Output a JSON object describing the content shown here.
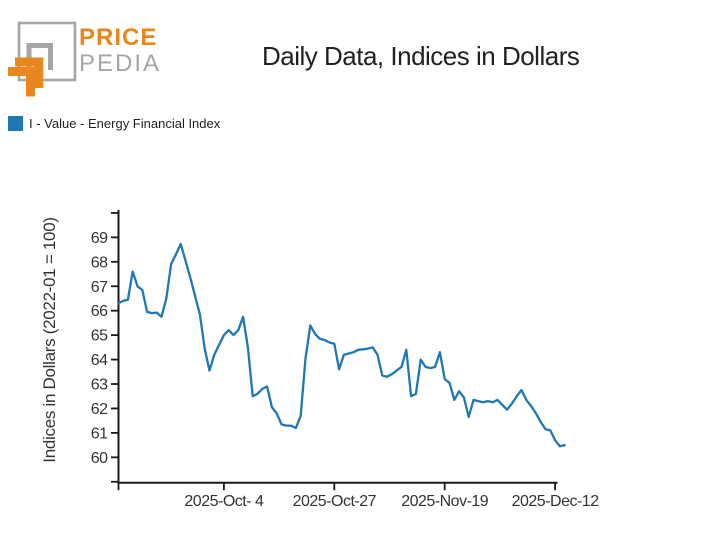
{
  "brand": {
    "name_top": "PRICE",
    "name_bottom": "PEDIA"
  },
  "title": "Daily Data, Indices in Dollars",
  "legend": {
    "label": "I - Value - Energy Financial Index",
    "swatch_color": "#1f77b4"
  },
  "colors": {
    "line": "#1f77b4",
    "logo_orange": "#e8871f",
    "logo_gray": "#a6a6a6",
    "axis": "#1a1a1a",
    "tick_text": "#333333"
  },
  "chart_data": {
    "type": "line",
    "title": "Daily Data, Indices in Dollars",
    "ylabel": "Indices in Dollars (2022-01 = 100)",
    "xlabel": "",
    "grid": false,
    "legend_position": "top-left-above-plot",
    "ylim": [
      58.9,
      70.1
    ],
    "yticks_labeled": [
      "69",
      "68",
      "67",
      "66",
      "65",
      "64",
      "63",
      "62",
      "61",
      "60"
    ],
    "yticks_unlabeled": [
      70,
      59
    ],
    "xticks": [
      {
        "label": "2025-Oct- 4",
        "index": 22
      },
      {
        "label": "2025-Oct-27",
        "index": 45
      },
      {
        "label": "2025-Nov-19",
        "index": 68
      },
      {
        "label": "2025-Dec-12",
        "index": 91
      }
    ],
    "series": [
      {
        "name": "I - Value - Energy Financial Index",
        "color": "#1f77b4",
        "frequency": "daily",
        "dates": [
          "2025-09-12",
          "2025-09-13",
          "2025-09-14",
          "2025-09-15",
          "2025-09-16",
          "2025-09-17",
          "2025-09-18",
          "2025-09-19",
          "2025-09-20",
          "2025-09-21",
          "2025-09-22",
          "2025-09-23",
          "2025-09-24",
          "2025-09-25",
          "2025-09-26",
          "2025-09-27",
          "2025-09-28",
          "2025-09-29",
          "2025-09-30",
          "2025-10-01",
          "2025-10-02",
          "2025-10-03",
          "2025-10-04",
          "2025-10-05",
          "2025-10-06",
          "2025-10-07",
          "2025-10-08",
          "2025-10-09",
          "2025-10-10",
          "2025-10-11",
          "2025-10-12",
          "2025-10-13",
          "2025-10-14",
          "2025-10-15",
          "2025-10-16",
          "2025-10-17",
          "2025-10-18",
          "2025-10-19",
          "2025-10-20",
          "2025-10-21",
          "2025-10-22",
          "2025-10-23",
          "2025-10-24",
          "2025-10-25",
          "2025-10-26",
          "2025-10-27",
          "2025-10-28",
          "2025-10-29",
          "2025-10-30",
          "2025-10-31",
          "2025-11-01",
          "2025-11-02",
          "2025-11-03",
          "2025-11-04",
          "2025-11-05",
          "2025-11-06",
          "2025-11-07",
          "2025-11-08",
          "2025-11-09",
          "2025-11-10",
          "2025-11-11",
          "2025-11-12",
          "2025-11-13",
          "2025-11-14",
          "2025-11-15",
          "2025-11-16",
          "2025-11-17",
          "2025-11-18",
          "2025-11-19",
          "2025-11-20",
          "2025-11-21",
          "2025-11-22",
          "2025-11-23",
          "2025-11-24",
          "2025-11-25",
          "2025-11-26",
          "2025-11-27",
          "2025-11-28",
          "2025-11-29",
          "2025-11-30",
          "2025-12-01",
          "2025-12-02",
          "2025-12-03",
          "2025-12-04",
          "2025-12-05",
          "2025-12-06",
          "2025-12-07",
          "2025-12-08",
          "2025-12-09",
          "2025-12-10",
          "2025-12-11",
          "2025-12-12",
          "2025-12-13",
          "2025-12-14"
        ],
        "values": [
          66.3,
          66.4,
          66.45,
          67.6,
          67.0,
          66.85,
          65.95,
          65.9,
          65.92,
          65.75,
          66.5,
          67.9,
          68.3,
          68.73,
          68.05,
          67.35,
          66.6,
          65.85,
          64.45,
          63.55,
          64.2,
          64.6,
          65.0,
          65.2,
          65.0,
          65.2,
          65.75,
          64.5,
          62.5,
          62.6,
          62.8,
          62.9,
          62.05,
          61.8,
          61.35,
          61.3,
          61.3,
          61.2,
          61.7,
          64.05,
          65.4,
          65.05,
          64.85,
          64.8,
          64.7,
          64.65,
          63.6,
          64.2,
          64.25,
          64.3,
          64.4,
          64.42,
          64.45,
          64.5,
          64.2,
          63.35,
          63.3,
          63.4,
          63.55,
          63.7,
          64.4,
          62.5,
          62.6,
          64.0,
          63.7,
          63.65,
          63.7,
          64.3,
          63.2,
          63.05,
          62.35,
          62.7,
          62.45,
          61.65,
          62.35,
          62.3,
          62.25,
          62.3,
          62.25,
          62.35,
          62.15,
          61.95,
          62.2,
          62.5,
          62.75,
          62.35,
          62.1,
          61.8,
          61.45,
          61.15,
          61.1,
          60.7,
          60.45,
          60.5
        ]
      }
    ]
  }
}
